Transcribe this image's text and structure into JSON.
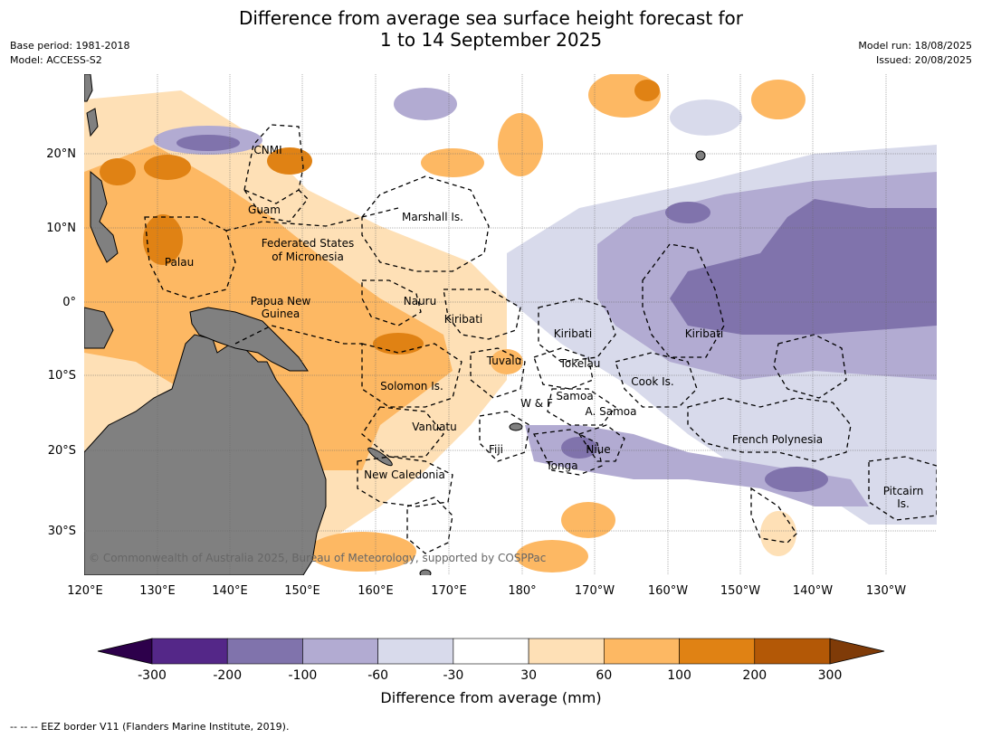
{
  "title_line1": "Difference from average sea surface height forecast for",
  "title_line2": "1 to 14 September 2025",
  "meta_left": [
    "Base period: 1981-2018",
    "Model: ACCESS-S2"
  ],
  "meta_right": [
    "Model run: 18/08/2025",
    "Issued: 20/08/2025"
  ],
  "copyright": "© Commonwealth of Australia 2025, Bureau of Meteorology, supported by COSPPac",
  "lon_labels": [
    "120°E",
    "130°E",
    "140°E",
    "150°E",
    "160°E",
    "170°E",
    "180°",
    "170°W",
    "160°W",
    "150°W",
    "140°W",
    "130°W"
  ],
  "lat_labels": [
    "20°N",
    "10°N",
    "0°",
    "10°S",
    "20°S",
    "30°S"
  ],
  "regions": [
    {
      "text": "CNMI"
    },
    {
      "text": "Guam"
    },
    {
      "text": "Marshall Is."
    },
    {
      "text": "Federated States"
    },
    {
      "text": "of Micronesia"
    },
    {
      "text": "Palau"
    },
    {
      "text": "Nauru"
    },
    {
      "text": "Papua New"
    },
    {
      "text": "Guinea"
    },
    {
      "text": "Kiribati"
    },
    {
      "text": "Kiribati"
    },
    {
      "text": "Kiribati"
    },
    {
      "text": "Tuvalu"
    },
    {
      "text": "Tokelau"
    },
    {
      "text": "Solomon Is."
    },
    {
      "text": "Cook Is."
    },
    {
      "text": "Samoa"
    },
    {
      "text": "W & F"
    },
    {
      "text": "A. Samoa"
    },
    {
      "text": "Vanuatu"
    },
    {
      "text": "Fiji"
    },
    {
      "text": "Niue"
    },
    {
      "text": "French Polynesia"
    },
    {
      "text": "Tonga"
    },
    {
      "text": "New Caledonia"
    },
    {
      "text": "Pitcairn"
    },
    {
      "text": "Is."
    }
  ],
  "colorbar": {
    "label": "Difference from average (mm)",
    "ticks": [
      "-300",
      "-200",
      "-100",
      "-60",
      "-30",
      "30",
      "60",
      "100",
      "200",
      "300"
    ],
    "colors": [
      "#2d004b",
      "#542788",
      "#8073ac",
      "#b2abd2",
      "#d8daeb",
      "#ffffff",
      "#fee0b6",
      "#fdb863",
      "#e08214",
      "#b35806",
      "#7f3b08"
    ]
  },
  "footnote": "--  --  -- EEZ border V11 (Flanders Marine Institute, 2019)."
}
